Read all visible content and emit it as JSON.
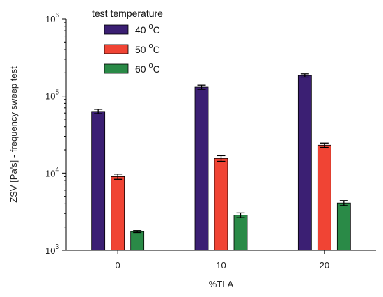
{
  "chart_data": {
    "type": "bar",
    "xlabel": "%TLA",
    "ylabel": "ZSV [Pa's] - frequency sweep test",
    "yscale": "log",
    "ylim": [
      1000,
      1000000
    ],
    "y_tick_labels": [
      {
        "value": 1000,
        "base": "10",
        "exp": "3"
      },
      {
        "value": 10000,
        "base": "10",
        "exp": "4"
      },
      {
        "value": 100000,
        "base": "10",
        "exp": "5"
      },
      {
        "value": 1000000,
        "base": "10",
        "exp": "6"
      }
    ],
    "categories": [
      "0",
      "10",
      "20"
    ],
    "legend": {
      "title": "test temperature",
      "unit_superscript": "o",
      "unit_letter": "C",
      "placement": "top-left"
    },
    "series": [
      {
        "name": "40",
        "color": "#3b1f73",
        "values": [
          63000,
          130000,
          185000
        ],
        "errors": [
          4000,
          8000,
          9000
        ]
      },
      {
        "name": "50",
        "color": "#f04434",
        "values": [
          9000,
          15500,
          23000
        ],
        "errors": [
          700,
          1300,
          1500
        ]
      },
      {
        "name": "60",
        "color": "#2a8a47",
        "values": [
          1750,
          2850,
          4100
        ],
        "errors": [
          50,
          200,
          300
        ]
      }
    ],
    "grid": false
  }
}
